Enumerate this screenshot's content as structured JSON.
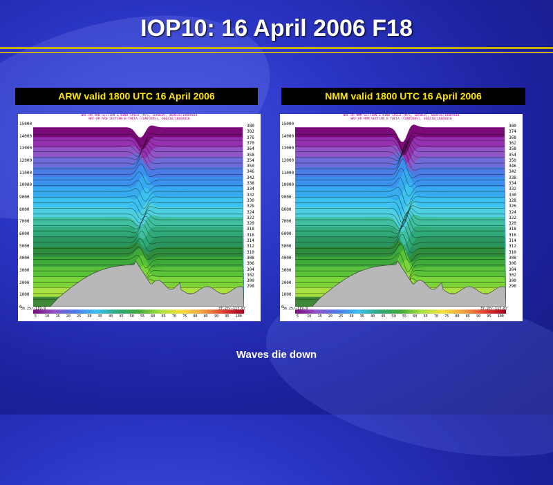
{
  "slide": {
    "title": "IOP10: 16 April 2006 F18",
    "caption": "Waves die down"
  },
  "colors": {
    "title_text": "#ffffff",
    "label_text": "#ffe600",
    "rule": "#c8b000",
    "terrain": "#b8b8b8"
  },
  "chart_data": [
    {
      "type": "heatmap",
      "title": "ARW valid 1800 UTC 16 April 2006",
      "header": [
        "WRF-RR ARW SECTION & WIND SPEED (M/S, SHADED), 060416/1800V018",
        "WRF-RR ARW SECTION B THETA (CONTOURS), 060416/1800V018"
      ],
      "y_ticks": [
        15000,
        14000,
        13000,
        12000,
        11000,
        10000,
        9000,
        8000,
        7000,
        6000,
        5000,
        4000,
        3000,
        2000,
        1000,
        0
      ],
      "ylim": [
        0,
        15000
      ],
      "theta_labels": [
        "380",
        "382",
        "376",
        "370",
        "364",
        "358",
        "354",
        "350",
        "346",
        "342",
        "338",
        "334",
        "332",
        "330",
        "326",
        "324",
        "322",
        "320",
        "318",
        "316",
        "314",
        "312",
        "310",
        "308",
        "306",
        "304",
        "302",
        "300",
        "298"
      ],
      "colorbar_ticks": [
        "5",
        "10",
        "15",
        "20",
        "25",
        "30",
        "35",
        "40",
        "45",
        "50",
        "55",
        "60",
        "65",
        "70",
        "75",
        "80",
        "85",
        "90",
        "95",
        "100"
      ],
      "x_start": "36.25/-119.9",
      "x_end": "37.27/-117.07"
    },
    {
      "type": "heatmap",
      "title": "NMM valid 1800 UTC 16 April 2006",
      "header": [
        "WRF-RR NMM SECTION & WIND SPEED (M/S, SHADED), 060416/1800V018",
        "WRF-RR NMM SECTION B THETA (CONTOURS), 060416/1800V018"
      ],
      "y_ticks": [
        15000,
        14000,
        13000,
        12000,
        11000,
        10000,
        9000,
        8000,
        7000,
        6000,
        5000,
        4000,
        3000,
        2000,
        1000,
        0
      ],
      "ylim": [
        0,
        15000
      ],
      "theta_labels": [
        "380",
        "374",
        "368",
        "362",
        "358",
        "354",
        "350",
        "346",
        "342",
        "338",
        "334",
        "332",
        "330",
        "328",
        "326",
        "324",
        "322",
        "320",
        "318",
        "316",
        "314",
        "312",
        "310",
        "308",
        "306",
        "304",
        "302",
        "300",
        "296"
      ],
      "colorbar_ticks": [
        "5",
        "10",
        "15",
        "20",
        "25",
        "30",
        "35",
        "40",
        "45",
        "50",
        "55",
        "60",
        "65",
        "70",
        "75",
        "80",
        "85",
        "90",
        "95",
        "100"
      ],
      "x_start": "36.25/-119.9",
      "x_end": "37.27/-117.07"
    }
  ]
}
